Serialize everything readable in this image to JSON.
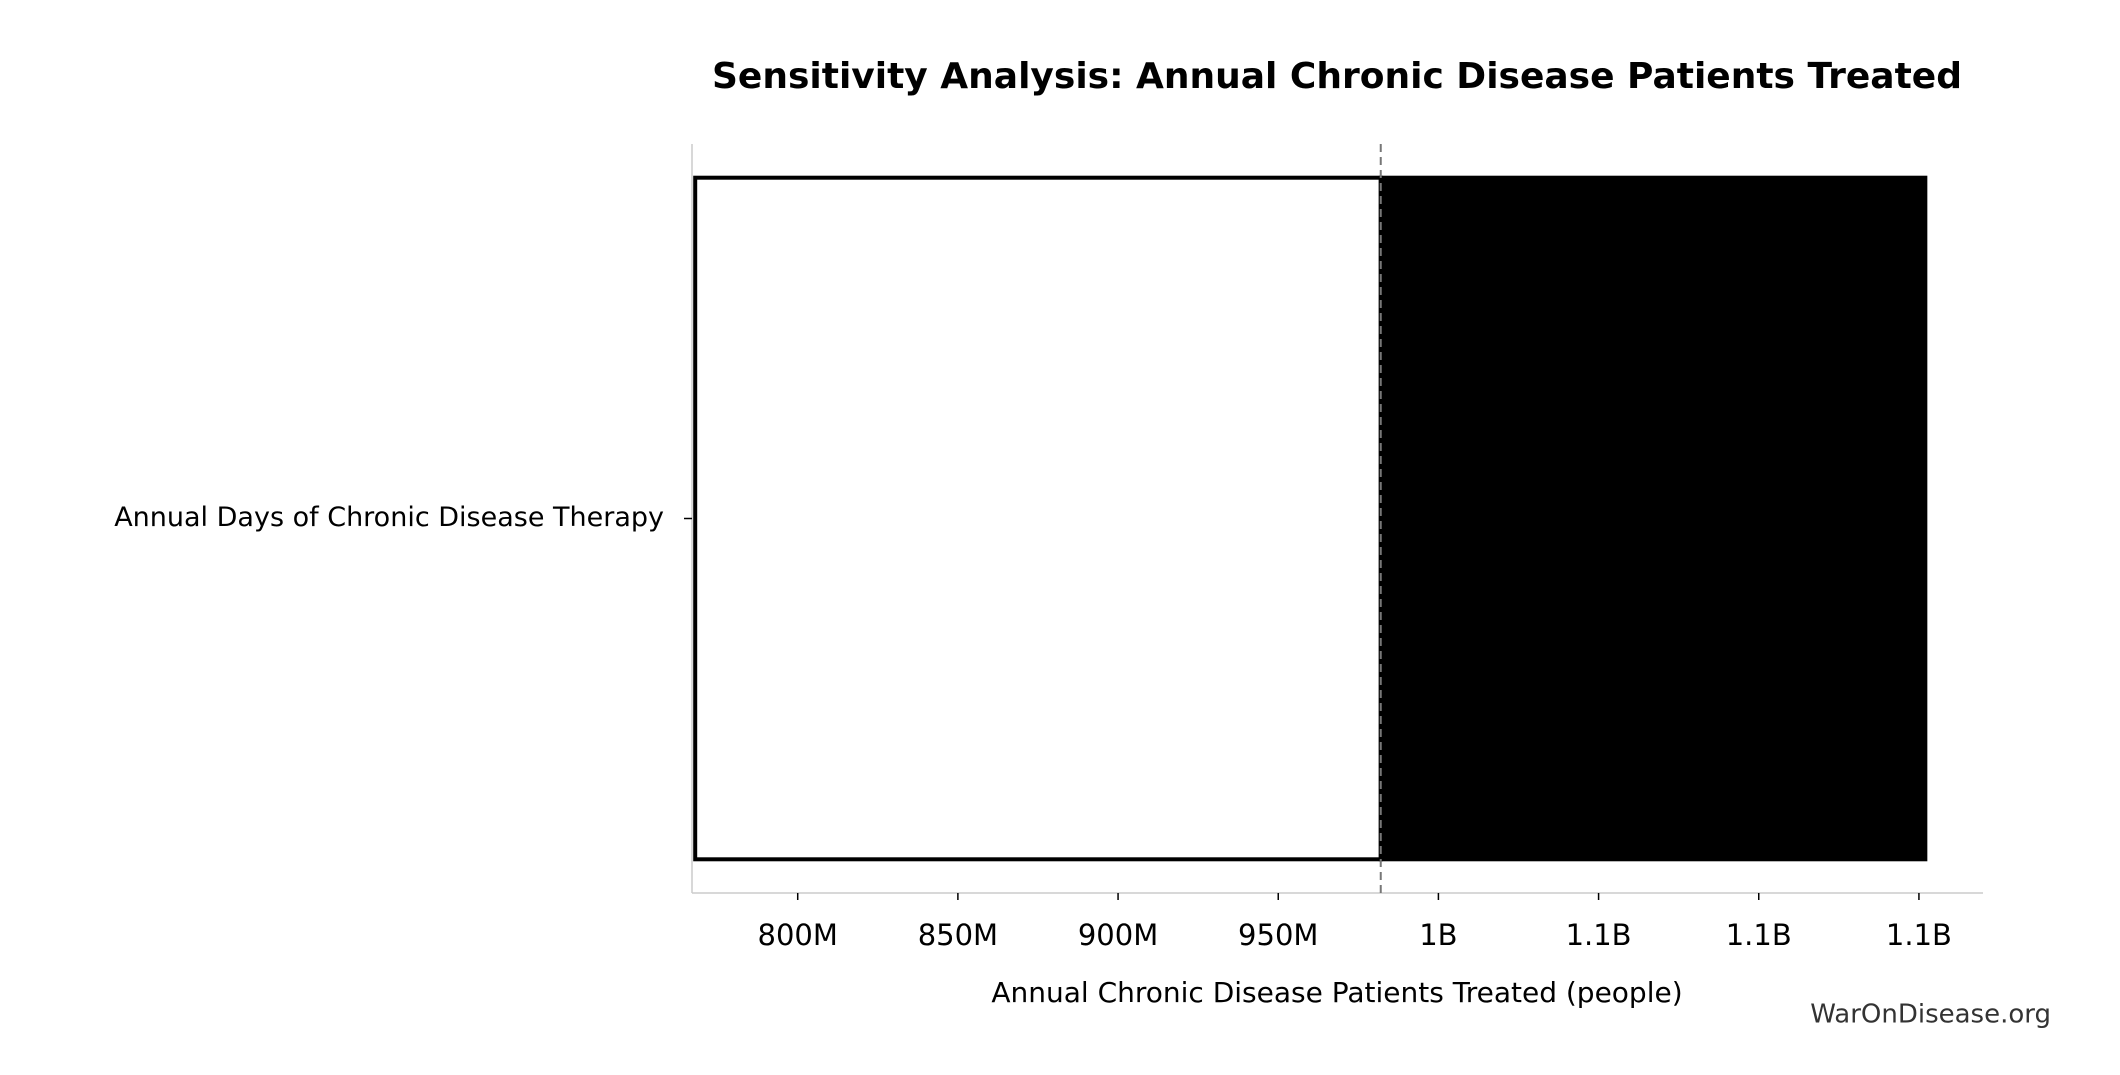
{
  "chart_data": {
    "type": "tornado",
    "title": "Sensitivity Analysis: Annual Chronic Disease Patients Treated",
    "xlabel": "Annual Chronic Disease Patients Treated (people)",
    "categories": [
      "Annual Days of Chronic Disease Therapy"
    ],
    "baseline": 982000000,
    "series": [
      {
        "color": "#ffffff",
        "values": [
          768000000
        ]
      },
      {
        "color": "#000000",
        "values": [
          1152000000
        ]
      }
    ],
    "xlim": [
      767000000,
      1170000000
    ],
    "xticks": [
      {
        "value": 800000000,
        "label": "800M"
      },
      {
        "value": 850000000,
        "label": "850M"
      },
      {
        "value": 900000000,
        "label": "900M"
      },
      {
        "value": 950000000,
        "label": "950M"
      },
      {
        "value": 1000000000,
        "label": "1B"
      },
      {
        "value": 1050000000,
        "label": "1.1B"
      },
      {
        "value": 1100000000,
        "label": "1.1B"
      },
      {
        "value": 1150000000,
        "label": "1.1B"
      }
    ],
    "watermark": "WarOnDisease.org"
  }
}
